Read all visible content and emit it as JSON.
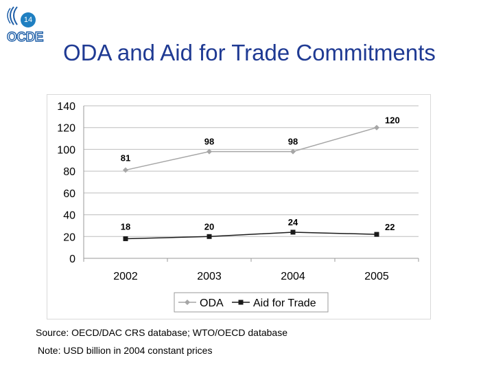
{
  "slide": {
    "number": "14",
    "org_logo_text": "OCDE"
  },
  "title": "ODA and Aid for Trade Commitments",
  "chart_data": {
    "type": "line",
    "categories": [
      "2002",
      "2003",
      "2004",
      "2005"
    ],
    "series": [
      {
        "name": "ODA",
        "values": [
          81,
          98,
          98,
          120
        ],
        "labels": [
          "81",
          "98",
          "98",
          "120"
        ],
        "color": "#a6a6a6",
        "marker": "diamond"
      },
      {
        "name": "Aid for Trade",
        "values": [
          18,
          20,
          24,
          22
        ],
        "labels": [
          "18",
          "20",
          "24",
          "22"
        ],
        "color": "#1a1a1a",
        "marker": "square"
      }
    ],
    "ylim": [
      0,
      140
    ],
    "yticks": [
      "0",
      "20",
      "40",
      "60",
      "80",
      "100",
      "120",
      "140"
    ],
    "grid": true,
    "legend": "bottom"
  },
  "source": "Source: OECD/DAC CRS database; WTO/OECD database",
  "note": "Note: USD billion in 2004 constant prices"
}
